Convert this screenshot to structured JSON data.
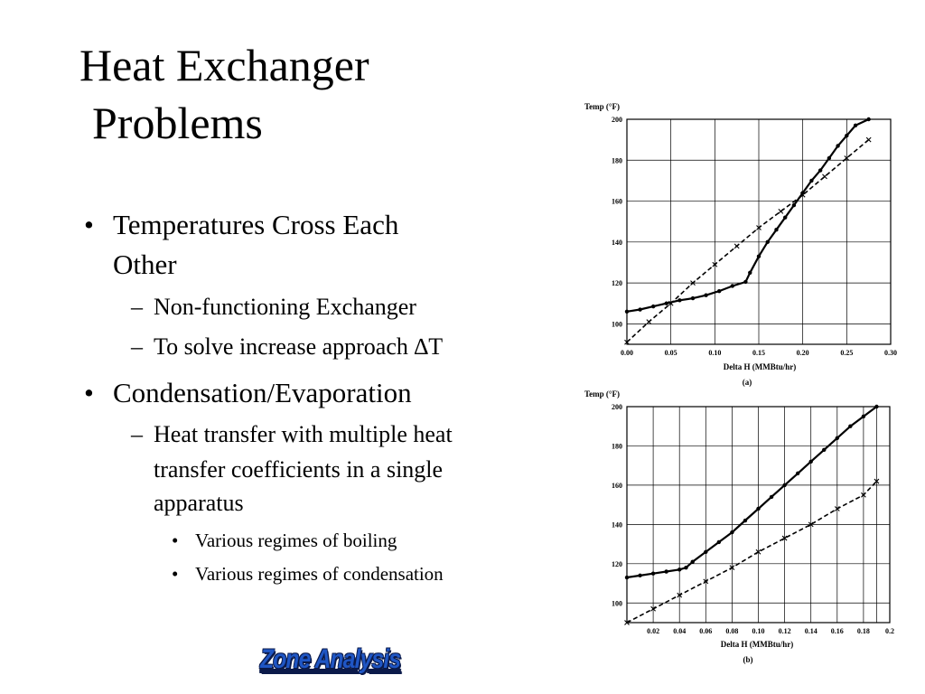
{
  "slide": {
    "title_line1": "Heat Exchanger",
    "title_line2": "Problems",
    "bullets": [
      {
        "text": "Temperatures Cross Each",
        "cont": "Other",
        "subs": [
          {
            "text": "Non-functioning Exchanger"
          },
          {
            "text": "To solve increase approach ∆T"
          }
        ]
      },
      {
        "text": "Condensation/Evaporation",
        "subs": [
          {
            "text": "Heat transfer with multiple heat",
            "cont1": "transfer coefficients in a single",
            "cont2": "apparatus",
            "subs": [
              {
                "text": "Various regimes of boiling"
              },
              {
                "text": "Various regimes of condensation"
              }
            ]
          }
        ]
      }
    ],
    "markers": {
      "level1": "•",
      "level2": "–",
      "level3": "•"
    },
    "logo_text": "Zone Analysis"
  },
  "chart_data": [
    {
      "type": "line",
      "ylabel": "Temp (°F)",
      "xlabel": "Delta H (MMBtu/hr)",
      "caption": "(a)",
      "xlim": [
        0,
        0.3
      ],
      "ylim": [
        90,
        200
      ],
      "x_ticks": [
        "0.00",
        "0.05",
        "0.10",
        "0.15",
        "0.20",
        "0.25",
        "0.30"
      ],
      "x_tick_values": [
        0,
        0.05,
        0.1,
        0.15,
        0.2,
        0.25,
        0.3
      ],
      "y_ticks": [
        "100",
        "120",
        "140",
        "160",
        "180",
        "200"
      ],
      "y_tick_values": [
        100,
        120,
        140,
        160,
        180,
        200
      ],
      "grid": true,
      "series": [
        {
          "style": "solid-dots",
          "points": [
            [
              0.0,
              106
            ],
            [
              0.015,
              107
            ],
            [
              0.03,
              108.5
            ],
            [
              0.045,
              110
            ],
            [
              0.06,
              111.5
            ],
            [
              0.075,
              112.5
            ],
            [
              0.09,
              114
            ],
            [
              0.105,
              116
            ],
            [
              0.12,
              118.5
            ],
            [
              0.135,
              120.5
            ],
            [
              0.14,
              125
            ],
            [
              0.15,
              133
            ],
            [
              0.16,
              140
            ],
            [
              0.17,
              146
            ],
            [
              0.18,
              152
            ],
            [
              0.19,
              158
            ],
            [
              0.2,
              164
            ],
            [
              0.21,
              170
            ],
            [
              0.22,
              175
            ],
            [
              0.23,
              181
            ],
            [
              0.24,
              187
            ],
            [
              0.25,
              192
            ],
            [
              0.26,
              197
            ],
            [
              0.275,
              200
            ]
          ]
        },
        {
          "style": "dash-cross",
          "points": [
            [
              0.0,
              91
            ],
            [
              0.025,
              101
            ],
            [
              0.05,
              110
            ],
            [
              0.075,
              120
            ],
            [
              0.1,
              129
            ],
            [
              0.125,
              138
            ],
            [
              0.15,
              147
            ],
            [
              0.175,
              155
            ],
            [
              0.2,
              163
            ],
            [
              0.225,
              172
            ],
            [
              0.25,
              181
            ],
            [
              0.275,
              190
            ]
          ]
        }
      ]
    },
    {
      "type": "line",
      "ylabel": "Temp (°F)",
      "xlabel": "Delta H (MMBtu/hr)",
      "caption": "(b)",
      "xlim": [
        0,
        0.2
      ],
      "ylim": [
        90,
        200
      ],
      "x_ticks": [
        "0.02",
        "0.04",
        "0.06",
        "0.08",
        "0.10",
        "0.12",
        "0.14",
        "0.16",
        "0.18",
        "0.2"
      ],
      "x_tick_values": [
        0.02,
        0.04,
        0.06,
        0.08,
        0.1,
        0.12,
        0.14,
        0.16,
        0.18,
        0.2
      ],
      "y_ticks": [
        "100",
        "120",
        "140",
        "160",
        "180",
        "200"
      ],
      "y_tick_values": [
        100,
        120,
        140,
        160,
        180,
        200
      ],
      "grid": true,
      "series": [
        {
          "style": "solid-dots",
          "points": [
            [
              0.0,
              113
            ],
            [
              0.01,
              114
            ],
            [
              0.02,
              115
            ],
            [
              0.03,
              116
            ],
            [
              0.04,
              117
            ],
            [
              0.045,
              118
            ],
            [
              0.05,
              121
            ],
            [
              0.06,
              126
            ],
            [
              0.07,
              131
            ],
            [
              0.08,
              136
            ],
            [
              0.09,
              142
            ],
            [
              0.1,
              148
            ],
            [
              0.11,
              154
            ],
            [
              0.12,
              160
            ],
            [
              0.13,
              166
            ],
            [
              0.14,
              172
            ],
            [
              0.15,
              178
            ],
            [
              0.16,
              184
            ],
            [
              0.17,
              190
            ],
            [
              0.18,
              195
            ],
            [
              0.19,
              200
            ]
          ]
        },
        {
          "style": "dash-cross",
          "points": [
            [
              0.0,
              90
            ],
            [
              0.02,
              97
            ],
            [
              0.04,
              104
            ],
            [
              0.06,
              111
            ],
            [
              0.08,
              118
            ],
            [
              0.1,
              126
            ],
            [
              0.12,
              133
            ],
            [
              0.14,
              140
            ],
            [
              0.16,
              148
            ],
            [
              0.18,
              155
            ],
            [
              0.19,
              162
            ]
          ]
        }
      ]
    }
  ]
}
